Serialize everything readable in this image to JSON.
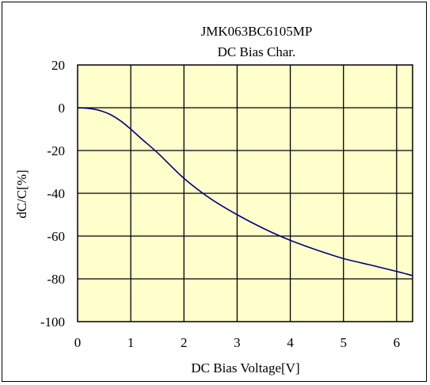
{
  "chart_data": {
    "type": "line",
    "title": "JMK063BC6105MP",
    "subtitle": "DC Bias Char.",
    "xlabel": "DC Bias Voltage[V]",
    "ylabel": "dC/C[%]",
    "xlim": [
      0,
      6.3
    ],
    "ylim": [
      -100,
      20
    ],
    "x_ticks": [
      0,
      1,
      2,
      3,
      4,
      5,
      6
    ],
    "y_ticks": [
      20,
      0,
      -20,
      -40,
      -60,
      -80,
      -100
    ],
    "grid": true,
    "legend": "none",
    "colors": {
      "plot_background": "#ffffcc",
      "line": "#000080",
      "grid": "#000000"
    },
    "series": [
      {
        "x": [
          0,
          0.2,
          0.4,
          0.6,
          0.8,
          1.0,
          1.2,
          1.5,
          2.0,
          2.5,
          3.0,
          3.5,
          4.0,
          4.5,
          5.0,
          5.5,
          6.0,
          6.3
        ],
        "y": [
          0,
          -0.3,
          -1.2,
          -3,
          -6,
          -10,
          -14.5,
          -21,
          -33,
          -42.5,
          -50,
          -56.5,
          -62,
          -66.5,
          -70.5,
          -73.5,
          -76.5,
          -78.5
        ]
      }
    ]
  }
}
